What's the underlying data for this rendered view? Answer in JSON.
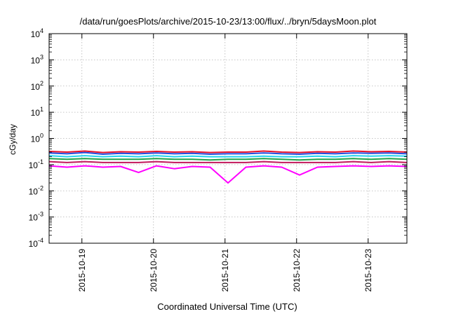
{
  "chart_data": {
    "type": "line",
    "title": "/data/run/goesPlots/archive/2015-10-23/13:00/flux/../bryn/5daysMoon.plot",
    "xlabel": "Coordinated Universal Time (UTC)",
    "ylabel": "cGy/day",
    "yscale": "log",
    "ylim": [
      0.0001,
      10000
    ],
    "xlim": [
      "2015-10-18 13:00",
      "2015-10-23 13:00"
    ],
    "grid": true,
    "legend": "none",
    "y_ticks": [
      {
        "base": "10",
        "exp": "-4",
        "value": 0.0001
      },
      {
        "base": "10",
        "exp": "-3",
        "value": 0.001
      },
      {
        "base": "10",
        "exp": "-2",
        "value": 0.01
      },
      {
        "base": "10",
        "exp": "-1",
        "value": 0.1
      },
      {
        "base": "10",
        "exp": "0",
        "value": 1
      },
      {
        "base": "10",
        "exp": "1",
        "value": 10
      },
      {
        "base": "10",
        "exp": "2",
        "value": 100
      },
      {
        "base": "10",
        "exp": "3",
        "value": 1000
      },
      {
        "base": "10",
        "exp": "4",
        "value": 10000
      }
    ],
    "x_ticks": [
      "2015-10-19",
      "2015-10-20",
      "2015-10-21",
      "2015-10-22",
      "2015-10-23"
    ],
    "x": [
      "2015-10-18 13:00",
      "2015-10-18 19:00",
      "2015-10-19 01:00",
      "2015-10-19 07:00",
      "2015-10-19 13:00",
      "2015-10-19 19:00",
      "2015-10-20 01:00",
      "2015-10-20 07:00",
      "2015-10-20 13:00",
      "2015-10-20 19:00",
      "2015-10-21 01:00",
      "2015-10-21 07:00",
      "2015-10-21 13:00",
      "2015-10-21 19:00",
      "2015-10-22 01:00",
      "2015-10-22 07:00",
      "2015-10-22 13:00",
      "2015-10-22 19:00",
      "2015-10-23 01:00",
      "2015-10-23 07:00",
      "2015-10-23 13:00"
    ],
    "series": [
      {
        "color": "#e8102a",
        "values": [
          0.32,
          0.3,
          0.33,
          0.29,
          0.31,
          0.3,
          0.32,
          0.3,
          0.31,
          0.29,
          0.3,
          0.3,
          0.33,
          0.3,
          0.29,
          0.31,
          0.3,
          0.33,
          0.31,
          0.32,
          0.3
        ]
      },
      {
        "color": "#1f4fe0",
        "values": [
          0.28,
          0.26,
          0.29,
          0.25,
          0.27,
          0.26,
          0.28,
          0.26,
          0.27,
          0.25,
          0.26,
          0.26,
          0.28,
          0.26,
          0.25,
          0.27,
          0.26,
          0.28,
          0.27,
          0.28,
          0.26
        ]
      },
      {
        "color": "#22d3ee",
        "values": [
          0.22,
          0.2,
          0.22,
          0.2,
          0.21,
          0.2,
          0.22,
          0.2,
          0.21,
          0.2,
          0.2,
          0.2,
          0.21,
          0.2,
          0.2,
          0.21,
          0.2,
          0.22,
          0.21,
          0.22,
          0.21
        ]
      },
      {
        "color": "#1fa34a",
        "values": [
          0.17,
          0.16,
          0.17,
          0.16,
          0.16,
          0.16,
          0.17,
          0.16,
          0.16,
          0.15,
          0.16,
          0.16,
          0.17,
          0.16,
          0.15,
          0.16,
          0.16,
          0.17,
          0.16,
          0.17,
          0.16
        ]
      },
      {
        "color": "#c2185b",
        "values": [
          0.13,
          0.12,
          0.13,
          0.12,
          0.12,
          0.12,
          0.13,
          0.12,
          0.12,
          0.12,
          0.12,
          0.12,
          0.13,
          0.12,
          0.12,
          0.12,
          0.12,
          0.13,
          0.12,
          0.13,
          0.12
        ]
      },
      {
        "color": "#ff00ff",
        "values": [
          0.09,
          0.08,
          0.09,
          0.08,
          0.085,
          0.05,
          0.09,
          0.07,
          0.085,
          0.08,
          0.02,
          0.08,
          0.09,
          0.08,
          0.04,
          0.08,
          0.085,
          0.09,
          0.085,
          0.09,
          0.085
        ]
      }
    ]
  }
}
